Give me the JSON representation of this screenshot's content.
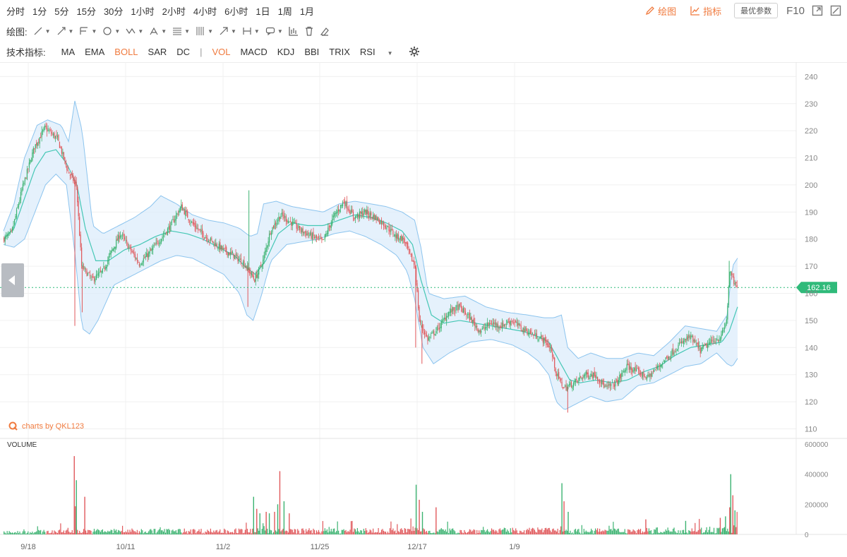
{
  "toolbar": {
    "timeframes": [
      "分时",
      "1分",
      "5分",
      "15分",
      "30分",
      "1小时",
      "2小时",
      "4小时",
      "6小时",
      "1日",
      "1周",
      "1月"
    ],
    "active_timeframe": "4小时",
    "draw_label": "绘图",
    "indicator_label": "指标",
    "params_label": "最优参数",
    "f10_label": "F10"
  },
  "drawing_bar": {
    "label": "绘图:"
  },
  "indicator_bar": {
    "label": "技术指标:",
    "items": [
      "MA",
      "EMA",
      "BOLL",
      "SAR",
      "DC",
      "VOL",
      "MACD",
      "KDJ",
      "BBI",
      "TRIX",
      "RSI"
    ],
    "active": [
      "BOLL",
      "VOL"
    ],
    "separator": "|"
  },
  "watermark": "charts by QKL123",
  "volume_title": "VOLUME",
  "colors": {
    "accent": "#f07a3e",
    "up": "#3cb371",
    "down": "#e0585b",
    "band_fill": "#dcecfb",
    "band_line": "#8cc4ee",
    "mid_line": "#45c7b5",
    "last_price_tag": "#2fba7a"
  },
  "chart_data": {
    "type": "candlestick",
    "indicators": [
      "BOLL",
      "VOL"
    ],
    "price_axis": {
      "ticks": [
        110,
        120,
        130,
        140,
        150,
        160,
        170,
        180,
        190,
        200,
        210,
        220,
        230,
        240
      ],
      "ylim": [
        107,
        244
      ]
    },
    "volume_axis": {
      "ticks": [
        "0",
        "200000",
        "400000",
        "600000"
      ],
      "ylim": [
        0,
        600000
      ]
    },
    "x_ticks": [
      "9/18",
      "10/11",
      "11/2",
      "11/25",
      "12/17",
      "1/9"
    ],
    "last_price": "162.16",
    "close_path": [
      [
        0,
        180
      ],
      [
        8,
        182
      ],
      [
        18,
        198
      ],
      [
        30,
        214
      ],
      [
        40,
        221
      ],
      [
        52,
        217
      ],
      [
        62,
        205
      ],
      [
        70,
        200
      ],
      [
        75,
        170
      ],
      [
        85,
        165
      ],
      [
        95,
        168
      ],
      [
        103,
        175
      ],
      [
        112,
        182
      ],
      [
        120,
        177
      ],
      [
        130,
        171
      ],
      [
        140,
        175
      ],
      [
        150,
        180
      ],
      [
        160,
        185
      ],
      [
        170,
        192
      ],
      [
        180,
        186
      ],
      [
        190,
        182
      ],
      [
        200,
        179
      ],
      [
        210,
        176
      ],
      [
        220,
        174
      ],
      [
        230,
        171
      ],
      [
        240,
        165
      ],
      [
        248,
        172
      ],
      [
        255,
        183
      ],
      [
        265,
        189
      ],
      [
        275,
        186
      ],
      [
        285,
        183
      ],
      [
        295,
        181
      ],
      [
        305,
        179
      ],
      [
        315,
        188
      ],
      [
        325,
        194
      ],
      [
        335,
        188
      ],
      [
        345,
        190
      ],
      [
        355,
        188
      ],
      [
        365,
        185
      ],
      [
        375,
        181
      ],
      [
        382,
        180
      ],
      [
        388,
        174
      ],
      [
        393,
        170
      ],
      [
        397,
        150
      ],
      [
        405,
        143
      ],
      [
        415,
        147
      ],
      [
        425,
        153
      ],
      [
        435,
        155
      ],
      [
        445,
        151
      ],
      [
        455,
        146
      ],
      [
        465,
        149
      ],
      [
        475,
        148
      ],
      [
        485,
        150
      ],
      [
        495,
        147
      ],
      [
        505,
        145
      ],
      [
        515,
        143
      ],
      [
        522,
        140
      ],
      [
        528,
        130
      ],
      [
        535,
        125
      ],
      [
        545,
        127
      ],
      [
        555,
        130
      ],
      [
        565,
        130
      ],
      [
        575,
        125
      ],
      [
        585,
        127
      ],
      [
        595,
        133
      ],
      [
        605,
        131
      ],
      [
        615,
        129
      ],
      [
        625,
        133
      ],
      [
        635,
        137
      ],
      [
        645,
        141
      ],
      [
        655,
        144
      ],
      [
        665,
        139
      ],
      [
        675,
        142
      ],
      [
        685,
        144
      ],
      [
        690,
        150
      ],
      [
        693,
        168
      ],
      [
        697,
        164
      ],
      [
        700,
        162
      ]
    ],
    "band_upper": [
      [
        0,
        183
      ],
      [
        10,
        193
      ],
      [
        20,
        210
      ],
      [
        32,
        222
      ],
      [
        42,
        224
      ],
      [
        55,
        222
      ],
      [
        62,
        216
      ],
      [
        68,
        231
      ],
      [
        75,
        220
      ],
      [
        85,
        185
      ],
      [
        95,
        182
      ],
      [
        110,
        185
      ],
      [
        125,
        188
      ],
      [
        140,
        192
      ],
      [
        150,
        196
      ],
      [
        165,
        193
      ],
      [
        180,
        189
      ],
      [
        195,
        187
      ],
      [
        210,
        186
      ],
      [
        225,
        184
      ],
      [
        235,
        181
      ],
      [
        242,
        182
      ],
      [
        248,
        193
      ],
      [
        260,
        194
      ],
      [
        275,
        192
      ],
      [
        290,
        191
      ],
      [
        305,
        190
      ],
      [
        320,
        193
      ],
      [
        335,
        194
      ],
      [
        350,
        193
      ],
      [
        365,
        192
      ],
      [
        380,
        190
      ],
      [
        392,
        187
      ],
      [
        398,
        177
      ],
      [
        405,
        160
      ],
      [
        420,
        158
      ],
      [
        440,
        159
      ],
      [
        460,
        155
      ],
      [
        480,
        153
      ],
      [
        500,
        152
      ],
      [
        515,
        151
      ],
      [
        525,
        151
      ],
      [
        532,
        152
      ],
      [
        538,
        140
      ],
      [
        548,
        136
      ],
      [
        560,
        138
      ],
      [
        575,
        136
      ],
      [
        590,
        136
      ],
      [
        605,
        138
      ],
      [
        620,
        137
      ],
      [
        635,
        142
      ],
      [
        650,
        148
      ],
      [
        665,
        147
      ],
      [
        680,
        146
      ],
      [
        690,
        152
      ],
      [
        695,
        170
      ],
      [
        700,
        173
      ]
    ],
    "band_lower": [
      [
        0,
        178
      ],
      [
        10,
        177
      ],
      [
        20,
        180
      ],
      [
        30,
        190
      ],
      [
        40,
        200
      ],
      [
        50,
        204
      ],
      [
        60,
        200
      ],
      [
        68,
        175
      ],
      [
        75,
        147
      ],
      [
        82,
        145
      ],
      [
        90,
        150
      ],
      [
        105,
        163
      ],
      [
        120,
        166
      ],
      [
        135,
        169
      ],
      [
        150,
        172
      ],
      [
        165,
        174
      ],
      [
        180,
        173
      ],
      [
        195,
        170
      ],
      [
        210,
        167
      ],
      [
        225,
        160
      ],
      [
        232,
        152
      ],
      [
        238,
        150
      ],
      [
        245,
        158
      ],
      [
        255,
        172
      ],
      [
        270,
        178
      ],
      [
        285,
        179
      ],
      [
        300,
        180
      ],
      [
        315,
        182
      ],
      [
        330,
        183
      ],
      [
        345,
        181
      ],
      [
        360,
        178
      ],
      [
        375,
        174
      ],
      [
        385,
        168
      ],
      [
        392,
        158
      ],
      [
        400,
        140
      ],
      [
        410,
        134
      ],
      [
        425,
        138
      ],
      [
        445,
        142
      ],
      [
        465,
        143
      ],
      [
        485,
        141
      ],
      [
        500,
        138
      ],
      [
        510,
        135
      ],
      [
        520,
        130
      ],
      [
        527,
        120
      ],
      [
        535,
        117
      ],
      [
        545,
        119
      ],
      [
        560,
        122
      ],
      [
        575,
        120
      ],
      [
        590,
        121
      ],
      [
        605,
        126
      ],
      [
        620,
        127
      ],
      [
        635,
        130
      ],
      [
        650,
        133
      ],
      [
        665,
        134
      ],
      [
        680,
        138
      ],
      [
        690,
        134
      ],
      [
        695,
        133
      ],
      [
        700,
        136
      ]
    ],
    "band_mid": [
      [
        0,
        180
      ],
      [
        10,
        184
      ],
      [
        20,
        195
      ],
      [
        30,
        206
      ],
      [
        40,
        212
      ],
      [
        50,
        213
      ],
      [
        60,
        208
      ],
      [
        70,
        200
      ],
      [
        78,
        184
      ],
      [
        88,
        172
      ],
      [
        100,
        172
      ],
      [
        115,
        176
      ],
      [
        130,
        178
      ],
      [
        145,
        181
      ],
      [
        160,
        183
      ],
      [
        175,
        182
      ],
      [
        190,
        180
      ],
      [
        205,
        177
      ],
      [
        220,
        174
      ],
      [
        230,
        170
      ],
      [
        240,
        167
      ],
      [
        250,
        172
      ],
      [
        262,
        182
      ],
      [
        275,
        186
      ],
      [
        290,
        185
      ],
      [
        305,
        185
      ],
      [
        320,
        187
      ],
      [
        335,
        189
      ],
      [
        350,
        188
      ],
      [
        365,
        186
      ],
      [
        380,
        183
      ],
      [
        390,
        178
      ],
      [
        398,
        165
      ],
      [
        408,
        152
      ],
      [
        420,
        149
      ],
      [
        435,
        150
      ],
      [
        450,
        149
      ],
      [
        465,
        148
      ],
      [
        480,
        147
      ],
      [
        495,
        146
      ],
      [
        510,
        144
      ],
      [
        520,
        142
      ],
      [
        530,
        135
      ],
      [
        540,
        128
      ],
      [
        550,
        127
      ],
      [
        565,
        128
      ],
      [
        580,
        127
      ],
      [
        595,
        128
      ],
      [
        610,
        131
      ],
      [
        625,
        133
      ],
      [
        640,
        137
      ],
      [
        655,
        140
      ],
      [
        670,
        141
      ],
      [
        685,
        142
      ],
      [
        692,
        146
      ],
      [
        700,
        155
      ]
    ],
    "volume_profile": [
      [
        0,
        12000
      ],
      [
        65,
        16000
      ],
      [
        68,
        40000
      ],
      [
        70,
        18000
      ],
      [
        380,
        20000
      ],
      [
        395,
        30000
      ],
      [
        398,
        18000
      ],
      [
        520,
        22000
      ],
      [
        530,
        28000
      ],
      [
        545,
        18000
      ],
      [
        690,
        25000
      ],
      [
        700,
        35000
      ]
    ],
    "volume_spikes": [
      [
        67,
        520000
      ],
      [
        69,
        360000
      ],
      [
        77,
        250000
      ],
      [
        238,
        250000
      ],
      [
        241,
        170000
      ],
      [
        244,
        140000
      ],
      [
        250,
        150000
      ],
      [
        253,
        140000
      ],
      [
        258,
        150000
      ],
      [
        261,
        200000
      ],
      [
        263,
        420000
      ],
      [
        267,
        220000
      ],
      [
        272,
        140000
      ],
      [
        393,
        330000
      ],
      [
        396,
        230000
      ],
      [
        399,
        150000
      ],
      [
        412,
        180000
      ],
      [
        532,
        340000
      ],
      [
        534,
        220000
      ],
      [
        538,
        150000
      ],
      [
        612,
        100000
      ],
      [
        650,
        90000
      ],
      [
        683,
        110000
      ],
      [
        688,
        120000
      ],
      [
        692,
        180000
      ],
      [
        693,
        400000
      ],
      [
        695,
        260000
      ],
      [
        697,
        160000
      ]
    ]
  }
}
